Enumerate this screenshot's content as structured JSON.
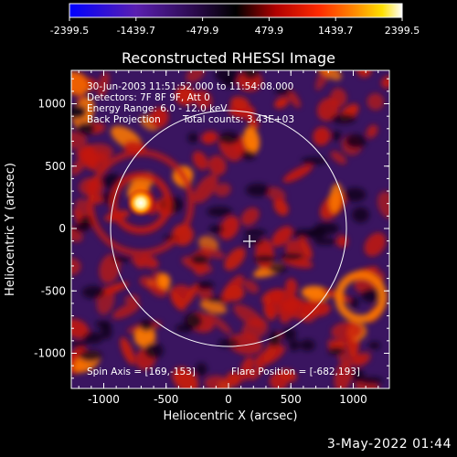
{
  "colorbar": {
    "ticks": [
      "-2399.5",
      "-1439.7",
      "-479.9",
      "479.9",
      "1439.7",
      "2399.5"
    ],
    "colors": [
      "#0000ff",
      "#5a1fb0",
      "#2a0a4a",
      "#000000",
      "#b00000",
      "#ff2a00",
      "#ff8c00",
      "#ffe000",
      "#ffffff"
    ]
  },
  "title": "Reconstructed RHESSI Image",
  "info": {
    "line1": "30-Jun-2003 11:51:52.000 to 11:54:08.000",
    "line2": "Detectors: 7F 8F 9F, Att 0",
    "line3": "Energy Range: 6.0 - 12.0 keV",
    "line4a": "Back Projection",
    "line4b": "Total counts: 3.43E+03",
    "spin_axis": "Spin Axis = [169,-153]",
    "flare_position": "Flare Position = [-682,193]"
  },
  "axes": {
    "xlabel": "Heliocentric X (arcsec)",
    "ylabel": "Heliocentric Y (arcsec)",
    "xticks": [
      "-1000",
      "-500",
      "0",
      "500",
      "1000"
    ],
    "yticks": [
      "1000",
      "500",
      "0",
      "-500",
      "-1000"
    ]
  },
  "colors": {
    "background": "#000000",
    "text": "#ffffff",
    "image_bg": "#3a1560",
    "red": "#c21a10",
    "hot": "#ff7a00",
    "core": "#fff4a0"
  },
  "timestamp": "3-May-2022 01:44"
}
